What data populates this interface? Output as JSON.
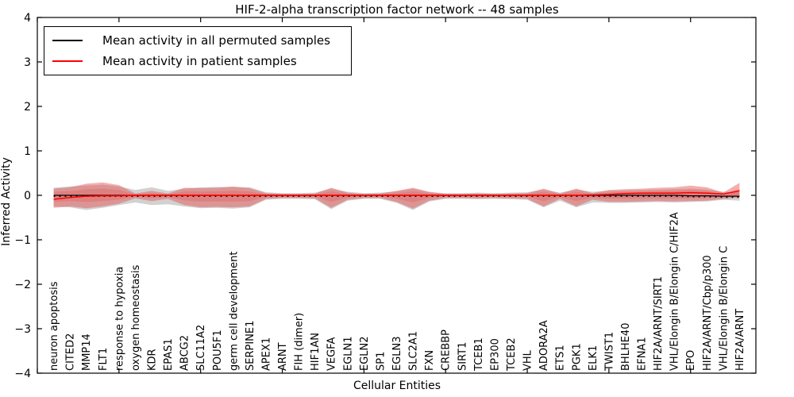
{
  "chart_data": {
    "type": "line",
    "title": "HIF-2-alpha transcription factor network -- 48 samples",
    "xlabel": "Cellular Entities",
    "ylabel": "Inferred Activity",
    "ylim": [
      -4,
      4
    ],
    "yticks": [
      -4,
      -3,
      -2,
      -1,
      0,
      1,
      2,
      3,
      4
    ],
    "grid": false,
    "legend_position": "upper left",
    "legend": [
      {
        "label": "Mean activity in all permuted samples",
        "color": "#000000"
      },
      {
        "label": "Mean activity in patient samples",
        "color": "#ff0000"
      }
    ],
    "colors": {
      "patient_line": "#ff0000",
      "permuted_line": "#000000",
      "patient_band": "#e84b4b",
      "permuted_band": "#c9c9c9",
      "background": "#ffffff"
    },
    "categories": [
      "neuron apoptosis",
      "CITED2",
      "MMP14",
      "FLT1",
      "response to hypoxia",
      "oxygen homeostasis",
      "KDR",
      "EPAS1",
      "ABCG2",
      "SLC11A2",
      "POU5F1",
      "germ cell development",
      "SERPINE1",
      "APEX1",
      "ARNT",
      "FIH (dimer)",
      "HIF1AN",
      "VEGFA",
      "EGLN1",
      "EGLN2",
      "SP1",
      "EGLN3",
      "SLC2A1",
      "FXN",
      "CREBBP",
      "SIRT1",
      "TCEB1",
      "EP300",
      "TCEB2",
      "VHL",
      "ADORA2A",
      "ETS1",
      "PGK1",
      "ELK1",
      "TWIST1",
      "BHLHE40",
      "EFNA1",
      "HIF2A/ARNT/SIRT1",
      "VHL/Elongin B/Elongin C/HIF2A",
      "EPO",
      "HIF2A/ARNT/Cbp/p300",
      "VHL/Elongin B/Elongin C",
      "HIF2A/ARNT"
    ],
    "series": [
      {
        "name": "Mean activity in all permuted samples",
        "color": "#000000",
        "values": [
          0,
          0,
          0,
          0,
          0,
          0,
          0,
          0,
          0,
          0,
          0,
          0,
          0,
          0,
          0,
          0,
          0,
          0,
          0,
          0,
          0,
          0,
          0,
          0,
          0,
          0,
          0,
          0,
          0,
          0,
          0,
          0,
          0,
          0,
          0,
          0,
          0,
          0,
          0,
          -0.01,
          -0.01,
          -0.02,
          -0.02
        ]
      },
      {
        "name": "Mean activity in patient samples",
        "color": "#ff0000",
        "values": [
          -0.09,
          -0.05,
          -0.02,
          -0.01,
          -0.01,
          0,
          0,
          0,
          0,
          0,
          0,
          0,
          0,
          0,
          0,
          0,
          0,
          0,
          0,
          0,
          0,
          0,
          0,
          0,
          0,
          0,
          0,
          0,
          0,
          0,
          0,
          0,
          0,
          0.01,
          0.02,
          0.04,
          0.05,
          0.05,
          0.05,
          0.06,
          0.05,
          0.03,
          0.1
        ]
      }
    ],
    "bands": [
      {
        "name": "permuted-samples-band",
        "color": "#c9c9c9",
        "opacity": 0.85,
        "upper": [
          0.17,
          0.2,
          0.22,
          0.24,
          0.2,
          0.12,
          0.18,
          0.1,
          0.15,
          0.18,
          0.19,
          0.18,
          0.18,
          0.07,
          0.05,
          0.05,
          0.06,
          0.15,
          0.08,
          0.05,
          0.06,
          0.09,
          0.15,
          0.07,
          0.05,
          0.05,
          0.06,
          0.05,
          0.06,
          0.07,
          0.13,
          0.06,
          0.13,
          0.08,
          0.1,
          0.11,
          0.12,
          0.13,
          0.14,
          0.15,
          0.13,
          0.08,
          0.07
        ],
        "lower": [
          -0.25,
          -0.27,
          -0.33,
          -0.28,
          -0.22,
          -0.16,
          -0.22,
          -0.2,
          -0.25,
          -0.29,
          -0.28,
          -0.3,
          -0.27,
          -0.1,
          -0.08,
          -0.08,
          -0.09,
          -0.31,
          -0.12,
          -0.08,
          -0.08,
          -0.17,
          -0.33,
          -0.14,
          -0.08,
          -0.08,
          -0.09,
          -0.08,
          -0.09,
          -0.1,
          -0.27,
          -0.12,
          -0.27,
          -0.16,
          -0.17,
          -0.17,
          -0.16,
          -0.15,
          -0.16,
          -0.15,
          -0.14,
          -0.1,
          -0.12
        ]
      },
      {
        "name": "patient-samples-band",
        "color": "#e84b4b",
        "opacity": 0.45,
        "upper": [
          0.15,
          0.18,
          0.26,
          0.29,
          0.23,
          0.04,
          0.1,
          0.04,
          0.17,
          0.16,
          0.17,
          0.2,
          0.16,
          0.05,
          0.03,
          0.03,
          0.04,
          0.17,
          0.06,
          0.03,
          0.04,
          0.1,
          0.17,
          0.08,
          0.03,
          0.03,
          0.04,
          0.03,
          0.04,
          0.05,
          0.15,
          0.04,
          0.15,
          0.05,
          0.12,
          0.14,
          0.15,
          0.17,
          0.18,
          0.22,
          0.18,
          0.06,
          0.28
        ],
        "lower": [
          -0.28,
          -0.25,
          -0.29,
          -0.25,
          -0.19,
          -0.07,
          -0.13,
          -0.08,
          -0.22,
          -0.27,
          -0.26,
          -0.27,
          -0.25,
          -0.08,
          -0.06,
          -0.06,
          -0.07,
          -0.28,
          -0.1,
          -0.06,
          -0.06,
          -0.15,
          -0.3,
          -0.12,
          -0.06,
          -0.06,
          -0.07,
          -0.06,
          -0.07,
          -0.08,
          -0.25,
          -0.08,
          -0.25,
          -0.1,
          -0.15,
          -0.15,
          -0.14,
          -0.13,
          -0.14,
          -0.13,
          -0.12,
          -0.08,
          -0.05
        ]
      }
    ],
    "n_points": 43
  }
}
